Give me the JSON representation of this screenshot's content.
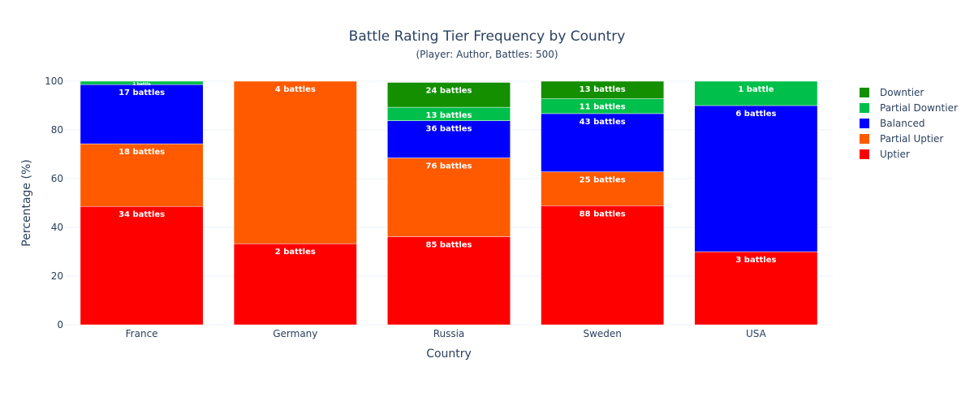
{
  "chart_data": {
    "type": "bar",
    "stacked": true,
    "title": "Battle Rating Tier Frequency by Country",
    "subtitle": "(Player: Author, Battles: 500)",
    "xlabel": "Country",
    "ylabel": "Percentage (%)",
    "ylim": [
      0,
      100
    ],
    "yticks": [
      0,
      20,
      40,
      60,
      80,
      100
    ],
    "grid": true,
    "legend_position": "right",
    "categories": [
      "France",
      "Germany",
      "Russia",
      "Sweden",
      "USA"
    ],
    "series": [
      {
        "name": "Uptier",
        "color": "#ff0000",
        "values": [
          48.6,
          33.3,
          36.2,
          48.9,
          30.0
        ],
        "labels": [
          "34 battles",
          "2 battles",
          "85 battles",
          "88 battles",
          "3 battles"
        ]
      },
      {
        "name": "Partial Uptier",
        "color": "#ff5a00",
        "values": [
          25.7,
          66.7,
          32.3,
          13.9,
          0
        ],
        "labels": [
          "18 battles",
          "4 battles",
          "76 battles",
          "25 battles",
          ""
        ]
      },
      {
        "name": "Balanced",
        "color": "#0000ff",
        "values": [
          24.3,
          0,
          15.3,
          23.9,
          60.0
        ],
        "labels": [
          "17 battles",
          "",
          "36 battles",
          "43 battles",
          "6 battles"
        ]
      },
      {
        "name": "Partial Downtier",
        "color": "#00c04b",
        "values": [
          1.4,
          0,
          5.5,
          6.1,
          10.0
        ],
        "labels": [
          "1 battle",
          "",
          "13 battles",
          "11 battles",
          "1 battle"
        ]
      },
      {
        "name": "Downtier",
        "color": "#138f00",
        "values": [
          0,
          0,
          10.2,
          7.2,
          0
        ],
        "labels": [
          "",
          "",
          "24 battles",
          "13 battles",
          ""
        ]
      }
    ],
    "legend_order": [
      "Downtier",
      "Partial Downtier",
      "Balanced",
      "Partial Uptier",
      "Uptier"
    ]
  }
}
